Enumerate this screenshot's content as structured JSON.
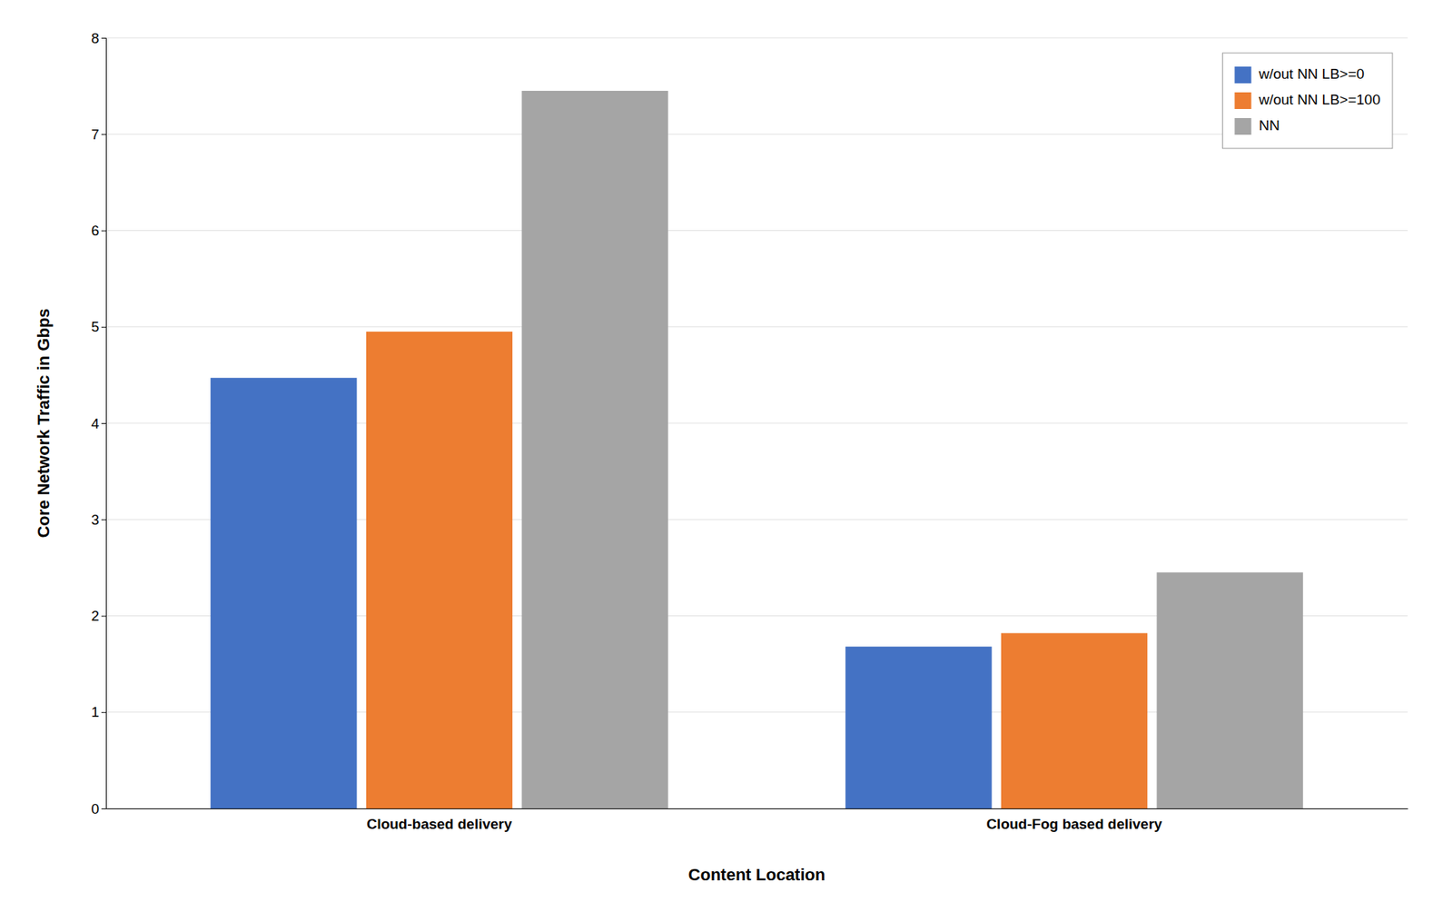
{
  "chart_data": {
    "type": "bar",
    "categories": [
      "Cloud-based delivery",
      "Cloud-Fog based delivery"
    ],
    "series": [
      {
        "name": "w/out NN LB>=0",
        "color": "#4472C4",
        "values": [
          4.47,
          1.68
        ]
      },
      {
        "name": "w/out NN LB>=100",
        "color": "#ED7D31",
        "values": [
          4.95,
          1.82
        ]
      },
      {
        "name": "NN",
        "color": "#A5A5A5",
        "values": [
          7.45,
          2.45
        ]
      }
    ],
    "xlabel": "Content Location",
    "ylabel": "Core Network Traffic in Gbps",
    "ylim": [
      0,
      8
    ],
    "yticks": [
      0,
      1,
      2,
      3,
      4,
      5,
      6,
      7,
      8
    ],
    "grid": true,
    "legend": "upper right"
  }
}
